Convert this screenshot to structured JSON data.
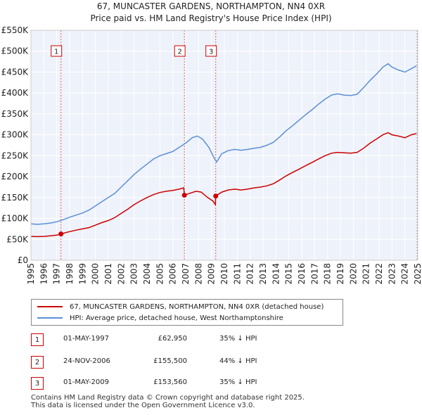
{
  "title_line1": "67, MUNCASTER GARDENS, NORTHAMPTON, NN4 0XR",
  "title_line2": "Price paid vs. HM Land Registry's House Price Index (HPI)",
  "legend": {
    "property_label": "67, MUNCASTER GARDENS, NORTHAMPTON, NN4 0XR (detached house)",
    "hpi_label": "HPI: Average price, detached house, West Northamptonshire"
  },
  "colors": {
    "property": "#cc0000",
    "hpi": "#5b8fd4",
    "grid": "#dddddd",
    "plot_bg": "#eef2fa",
    "sale_line": "#dd6666"
  },
  "sales": [
    {
      "num": "1",
      "date": "01-MAY-1997",
      "price": "£62,950",
      "diff": "35% ↓ HPI"
    },
    {
      "num": "2",
      "date": "24-NOV-2006",
      "price": "£155,500",
      "diff": "44% ↓ HPI"
    },
    {
      "num": "3",
      "date": "01-MAY-2009",
      "price": "£153,560",
      "diff": "35% ↓ HPI"
    }
  ],
  "footer_line1": "Contains HM Land Registry data © Crown copyright and database right 2025.",
  "footer_line2": "This data is licensed under the Open Government Licence v3.0.",
  "chart_data": {
    "type": "line",
    "xlim": [
      1995,
      2025
    ],
    "ylim": [
      0,
      550000
    ],
    "x_ticks": [
      1995,
      1996,
      1997,
      1998,
      1999,
      2000,
      2001,
      2002,
      2003,
      2004,
      2005,
      2006,
      2007,
      2008,
      2009,
      2010,
      2011,
      2012,
      2013,
      2014,
      2015,
      2016,
      2017,
      2018,
      2019,
      2020,
      2021,
      2022,
      2023,
      2024,
      2025
    ],
    "x_tick_labels": [
      "1995",
      "1996",
      "1997",
      "1998",
      "1999",
      "2000",
      "2001",
      "2002",
      "2003",
      "2004",
      "2005",
      "2006",
      "2007",
      "2008",
      "2009",
      "2010",
      "2011",
      "2012",
      "2013",
      "2014",
      "2015",
      "2016",
      "2017",
      "2018",
      "2019",
      "2020",
      "2021",
      "2022",
      "2023",
      "2024",
      "2025"
    ],
    "y_ticks": [
      0,
      50000,
      100000,
      150000,
      200000,
      250000,
      300000,
      350000,
      400000,
      450000,
      500000,
      550000
    ],
    "y_tick_labels": [
      "£0",
      "£50K",
      "£100K",
      "£150K",
      "£200K",
      "£250K",
      "£300K",
      "£350K",
      "£400K",
      "£450K",
      "£500K",
      "£550K"
    ],
    "sale_events": [
      {
        "label": "1",
        "x": 1997.33,
        "y": 62950
      },
      {
        "label": "2",
        "x": 2006.9,
        "y": 155500
      },
      {
        "label": "3",
        "x": 2009.33,
        "y": 153560
      }
    ],
    "series": [
      {
        "name": "67, MUNCASTER GARDENS, NORTHAMPTON, NN4 0XR (detached house)",
        "points": [
          [
            1995,
            57000
          ],
          [
            1995.5,
            56500
          ],
          [
            1996,
            57000
          ],
          [
            1996.5,
            58500
          ],
          [
            1997,
            60000
          ],
          [
            1997.33,
            62950
          ],
          [
            1997.8,
            67000
          ],
          [
            1998.5,
            72000
          ],
          [
            1999,
            75000
          ],
          [
            1999.5,
            78000
          ],
          [
            2000,
            84000
          ],
          [
            2000.5,
            90000
          ],
          [
            2001,
            95000
          ],
          [
            2001.5,
            102000
          ],
          [
            2002,
            112000
          ],
          [
            2002.5,
            122000
          ],
          [
            2003,
            133000
          ],
          [
            2003.5,
            142000
          ],
          [
            2004,
            150000
          ],
          [
            2004.5,
            157000
          ],
          [
            2005,
            162000
          ],
          [
            2005.5,
            165000
          ],
          [
            2006,
            167000
          ],
          [
            2006.5,
            170000
          ],
          [
            2006.85,
            173000
          ],
          [
            2006.9,
            155500
          ],
          [
            2007.3,
            160000
          ],
          [
            2007.8,
            165000
          ],
          [
            2008.2,
            163000
          ],
          [
            2008.7,
            150000
          ],
          [
            2009.1,
            142000
          ],
          [
            2009.3,
            133000
          ],
          [
            2009.33,
            153560
          ],
          [
            2009.8,
            163000
          ],
          [
            2010.3,
            168000
          ],
          [
            2010.8,
            170000
          ],
          [
            2011.3,
            168000
          ],
          [
            2011.8,
            170000
          ],
          [
            2012.3,
            173000
          ],
          [
            2012.8,
            175000
          ],
          [
            2013.3,
            178000
          ],
          [
            2013.8,
            183000
          ],
          [
            2014.3,
            192000
          ],
          [
            2014.8,
            202000
          ],
          [
            2015.3,
            210000
          ],
          [
            2015.8,
            218000
          ],
          [
            2016.3,
            226000
          ],
          [
            2016.8,
            234000
          ],
          [
            2017.3,
            242000
          ],
          [
            2017.8,
            250000
          ],
          [
            2018.3,
            256000
          ],
          [
            2018.8,
            258000
          ],
          [
            2019.3,
            257000
          ],
          [
            2019.8,
            256000
          ],
          [
            2020.3,
            258000
          ],
          [
            2020.8,
            268000
          ],
          [
            2021.3,
            280000
          ],
          [
            2021.8,
            290000
          ],
          [
            2022.3,
            300000
          ],
          [
            2022.7,
            305000
          ],
          [
            2023,
            300000
          ],
          [
            2023.5,
            297000
          ],
          [
            2024,
            293000
          ],
          [
            2024.5,
            300000
          ],
          [
            2024.9,
            303000
          ]
        ]
      },
      {
        "name": "HPI: Average price, detached house, West Northamptonshire",
        "points": [
          [
            1995,
            87000
          ],
          [
            1995.5,
            86000
          ],
          [
            1996,
            87000
          ],
          [
            1996.5,
            89000
          ],
          [
            1997,
            92000
          ],
          [
            1997.5,
            97000
          ],
          [
            1998,
            103000
          ],
          [
            1998.5,
            108000
          ],
          [
            1999,
            113000
          ],
          [
            1999.5,
            120000
          ],
          [
            2000,
            130000
          ],
          [
            2000.5,
            140000
          ],
          [
            2001,
            150000
          ],
          [
            2001.5,
            160000
          ],
          [
            2002,
            175000
          ],
          [
            2002.5,
            190000
          ],
          [
            2003,
            205000
          ],
          [
            2003.5,
            218000
          ],
          [
            2004,
            230000
          ],
          [
            2004.5,
            242000
          ],
          [
            2005,
            250000
          ],
          [
            2005.5,
            255000
          ],
          [
            2006,
            260000
          ],
          [
            2006.5,
            270000
          ],
          [
            2007,
            280000
          ],
          [
            2007.5,
            293000
          ],
          [
            2007.9,
            297000
          ],
          [
            2008.3,
            290000
          ],
          [
            2008.8,
            270000
          ],
          [
            2009.2,
            245000
          ],
          [
            2009.4,
            235000
          ],
          [
            2009.8,
            255000
          ],
          [
            2010.3,
            262000
          ],
          [
            2010.8,
            265000
          ],
          [
            2011.3,
            263000
          ],
          [
            2011.8,
            265000
          ],
          [
            2012.3,
            268000
          ],
          [
            2012.8,
            270000
          ],
          [
            2013.3,
            275000
          ],
          [
            2013.8,
            282000
          ],
          [
            2014.3,
            295000
          ],
          [
            2014.8,
            310000
          ],
          [
            2015.3,
            322000
          ],
          [
            2015.8,
            335000
          ],
          [
            2016.3,
            348000
          ],
          [
            2016.8,
            360000
          ],
          [
            2017.3,
            373000
          ],
          [
            2017.8,
            385000
          ],
          [
            2018.3,
            395000
          ],
          [
            2018.8,
            398000
          ],
          [
            2019.3,
            395000
          ],
          [
            2019.8,
            394000
          ],
          [
            2020.3,
            397000
          ],
          [
            2020.8,
            413000
          ],
          [
            2021.3,
            430000
          ],
          [
            2021.8,
            445000
          ],
          [
            2022.3,
            462000
          ],
          [
            2022.7,
            470000
          ],
          [
            2023,
            462000
          ],
          [
            2023.5,
            455000
          ],
          [
            2024,
            450000
          ],
          [
            2024.5,
            458000
          ],
          [
            2024.9,
            465000
          ]
        ]
      }
    ]
  }
}
